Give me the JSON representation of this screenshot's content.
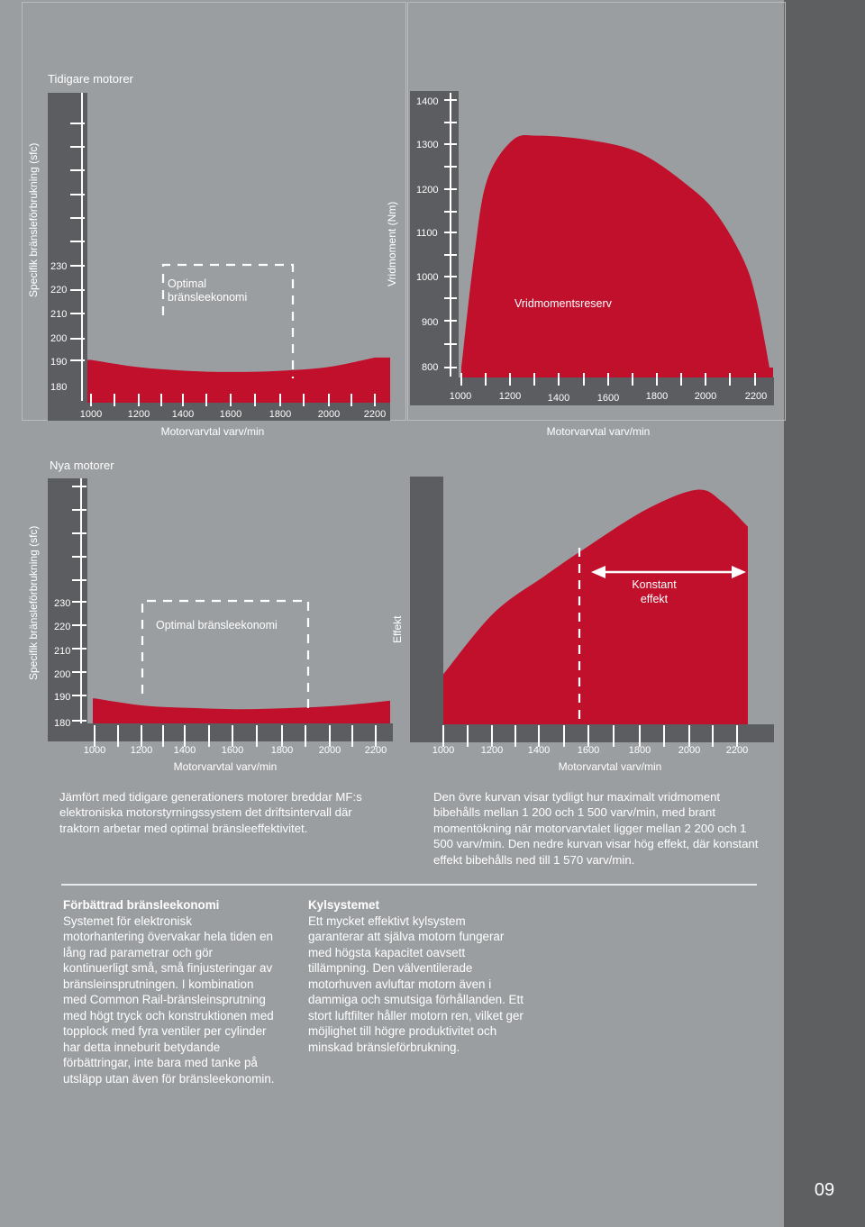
{
  "page_number": "09",
  "charts": {
    "old": {
      "section_label": "Tidigare motorer",
      "y_axis_label": "Specifik bränsleförbrukning (sfc)",
      "y_ticks": [
        "230",
        "220",
        "210",
        "200",
        "190",
        "180"
      ],
      "x_ticks": [
        "1000",
        "1200",
        "1400",
        "1600",
        "1800",
        "2000",
        "2200"
      ],
      "x_label": "Motorvarvtal varv/min",
      "annotation": [
        "Optimal",
        "bränsleekonomi"
      ]
    },
    "torque": {
      "y_axis_label": "Vridmoment (Nm)",
      "y_ticks": [
        "1400",
        "1300",
        "1200",
        "1100",
        "1000",
        "900",
        "800"
      ],
      "x_ticks": [
        "1000",
        "1200",
        "1400",
        "1600",
        "1800",
        "2000",
        "2200"
      ],
      "x_label": "Motorvarvtal varv/min",
      "annotation": "Vridmomentsreserv"
    },
    "new": {
      "section_label": "Nya motorer",
      "y_axis_label": "Specifik bränsleförbrukning (sfc)",
      "y_ticks": [
        "230",
        "220",
        "210",
        "200",
        "190",
        "180"
      ],
      "x_ticks": [
        "1000",
        "1200",
        "1400",
        "1600",
        "1800",
        "2000",
        "2200"
      ],
      "x_label": "Motorvarvtal varv/min",
      "annotation": "Optimal bränsleekonomi"
    },
    "power": {
      "y_axis_label": "Effekt",
      "x_ticks": [
        "1000",
        "1200",
        "1400",
        "1600",
        "1800",
        "2000",
        "2200"
      ],
      "x_label": "Motorvarvtal varv/min",
      "annotation": [
        "Konstant",
        "effekt"
      ]
    }
  },
  "chart_data": [
    {
      "type": "area",
      "title": "Tidigare motorer",
      "ylabel": "Specifik bränsleförbrukning (sfc)",
      "xlabel": "Motorvarvtal varv/min",
      "x_ticks": [
        1000,
        1200,
        1400,
        1600,
        1800,
        2000,
        2200
      ],
      "y_ticks": [
        180,
        190,
        200,
        210,
        220,
        230
      ],
      "series": [
        {
          "x": [
            1000,
            1200,
            1400,
            1600,
            1800,
            2000,
            2200
          ],
          "values": [
            191,
            188,
            186.5,
            186,
            186.5,
            188,
            192
          ]
        }
      ],
      "annotation": {
        "text": "Optimal bränsleekonomi",
        "x_range": [
          1300,
          1860
        ]
      }
    },
    {
      "type": "area",
      "ylabel": "Vridmoment (Nm)",
      "xlabel": "Motorvarvtal varv/min",
      "x_ticks": [
        1000,
        1200,
        1400,
        1600,
        1800,
        2000,
        2200
      ],
      "y_ticks": [
        800,
        900,
        1000,
        1100,
        1200,
        1300,
        1400
      ],
      "series": [
        {
          "x": [
            1000,
            1050,
            1100,
            1200,
            1300,
            1500,
            1700,
            1900,
            2000,
            2100,
            2150,
            2200
          ],
          "values": [
            800,
            1050,
            1220,
            1310,
            1320,
            1310,
            1280,
            1200,
            1140,
            1040,
            950,
            800
          ]
        }
      ],
      "annotation": {
        "text": "Vridmomentsreserv"
      }
    },
    {
      "type": "area",
      "title": "Nya motorer",
      "ylabel": "Specifik bränsleförbrukning (sfc)",
      "xlabel": "Motorvarvtal varv/min",
      "x_ticks": [
        1000,
        1200,
        1400,
        1600,
        1800,
        2000,
        2200
      ],
      "y_ticks": [
        180,
        190,
        200,
        210,
        220,
        230
      ],
      "series": [
        {
          "x": [
            1000,
            1200,
            1400,
            1600,
            1800,
            2000,
            2200
          ],
          "values": [
            190,
            187,
            186,
            185.5,
            186,
            187,
            189
          ]
        }
      ],
      "annotation": {
        "text": "Optimal bränsleekonomi",
        "x_range": [
          1200,
          1890
        ]
      }
    },
    {
      "type": "area",
      "ylabel": "Effekt",
      "xlabel": "Motorvarvtal varv/min",
      "x_ticks": [
        1000,
        1200,
        1400,
        1600,
        1800,
        2000,
        2200
      ],
      "series": [
        {
          "x": [
            1000,
            1200,
            1400,
            1570,
            1800,
            2000,
            2100,
            2200
          ],
          "values": [
            0.2,
            0.45,
            0.6,
            0.72,
            0.87,
            0.95,
            0.9,
            0.8
          ]
        }
      ],
      "annotation": {
        "text": "Konstant effekt",
        "x_range": [
          1570,
          2200
        ]
      }
    }
  ],
  "text": {
    "left_caption": "Jämfört med tidigare generationers motorer breddar MF:s elektroniska motorstyrningssystem det driftsintervall där traktorn arbetar med optimal bränsleeffektivitet.",
    "right_caption": "Den övre kurvan visar tydligt hur maximalt vridmoment bibehålls mellan 1 200 och 1 500 varv/min, med brant momentökning när motorvarvtalet ligger mellan 2 200 och 1 500 varv/min. Den nedre kurvan visar hög effekt, där konstant effekt bibehålls ned till 1 570 varv/min.",
    "col1_head": "Förbättrad bränsleekonomi",
    "col1_body": "Systemet för elektronisk motorhantering övervakar hela tiden en lång rad parametrar och gör kontinuerligt små, små finjusteringar av bränsleinsprutningen. I kombination med Common Rail-bränsleinsprutning med högt tryck och konstruktionen med topplock med fyra ventiler per cylinder har detta inneburit betydande förbättringar, inte bara med tanke på utsläpp utan även för bränsleekonomin.",
    "col2_head": "Kylsystemet",
    "col2_body": "Ett mycket effektivt kylsystem garanterar att själva motorn fungerar med högsta kapacitet oavsett tillämpning. Den välventilerade motorhuven avluftar motorn även i dammiga och smutsiga förhållanden. Ett stort luftfilter håller motorn ren, vilket ger möjlighet till högre produktivitet och minskad bränsleförbrukning."
  },
  "colors": {
    "curve": "#c0102c",
    "axis": "#5b5d60",
    "page": "#9b9ea1",
    "strip": "#5d5f61"
  }
}
